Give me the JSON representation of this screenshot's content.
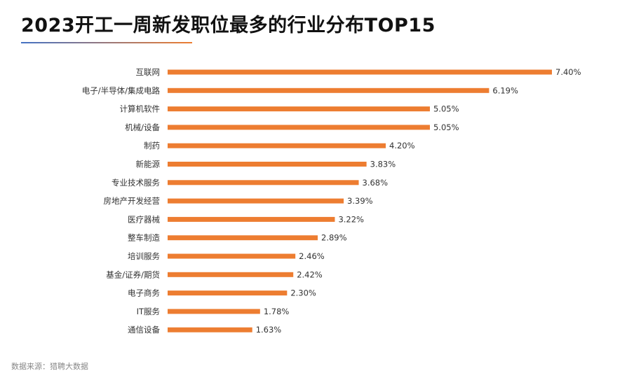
{
  "header": {
    "title": "2023开工一周新发职位最多的行业分布TOP15"
  },
  "footer": {
    "source": "数据来源：猎聘大数据"
  },
  "colors": {
    "bar": "#ED7D31",
    "rule_start": "#4472C4",
    "rule_end": "#ED7D31",
    "label_text": "#333333"
  },
  "chart_data": {
    "type": "bar",
    "orientation": "horizontal",
    "title": "2023开工一周新发职位最多的行业分布TOP15",
    "xlabel": "",
    "ylabel": "",
    "value_format": "percent",
    "grid": false,
    "legend": "none",
    "categories": [
      "互联网",
      "电子/半导体/集成电路",
      "计算机软件",
      "机械/设备",
      "制药",
      "新能源",
      "专业技术服务",
      "房地产开发经营",
      "医疗器械",
      "整车制造",
      "培训服务",
      "基金/证券/期货",
      "电子商务",
      "IT服务",
      "通信设备"
    ],
    "values": [
      7.4,
      6.19,
      5.05,
      5.05,
      4.2,
      3.83,
      3.68,
      3.39,
      3.22,
      2.89,
      2.46,
      2.42,
      2.3,
      1.78,
      1.63
    ],
    "value_labels": [
      "7.40%",
      "6.19%",
      "5.05%",
      "5.05%",
      "4.20%",
      "3.83%",
      "3.68%",
      "3.39%",
      "3.22%",
      "2.89%",
      "2.46%",
      "2.42%",
      "2.30%",
      "1.78%",
      "1.63%"
    ]
  }
}
